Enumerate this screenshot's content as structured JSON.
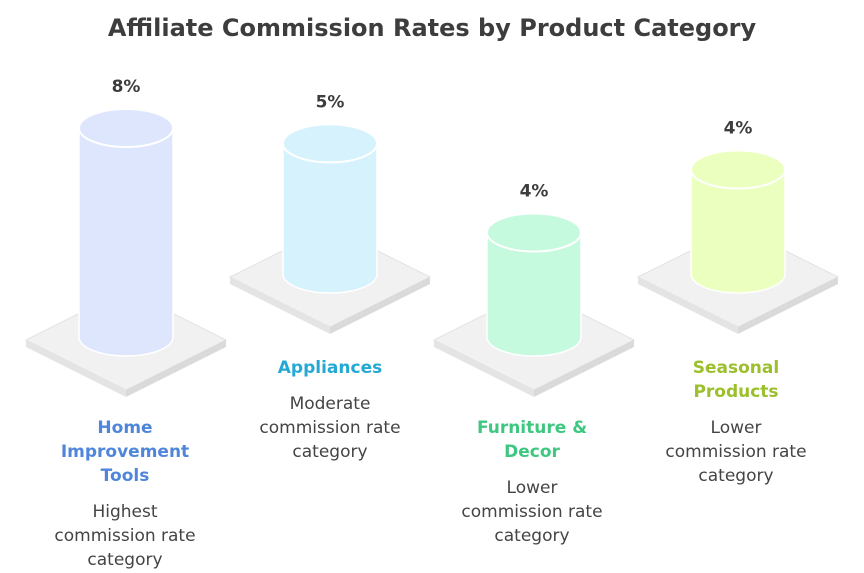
{
  "chart_data": {
    "type": "bar",
    "title": "Affiliate Commission Rates by Product Category",
    "unit": "%",
    "categories": [
      {
        "name": "Home Improvement Tools",
        "value": 8,
        "label": "8%",
        "description": "Highest commission rate category",
        "fill": "#dde6fc",
        "name_color": "#4f86db"
      },
      {
        "name": "Appliances",
        "value": 5,
        "label": "5%",
        "description": "Moderate commission rate category",
        "fill": "#d5f2fd",
        "name_color": "#25a9d4"
      },
      {
        "name": "Furniture & Decor",
        "value": 4,
        "label": "4%",
        "description": "Lower commission rate category",
        "fill": "#c6fadf",
        "name_color": "#3fc781"
      },
      {
        "name": "Seasonal Products",
        "value": 4,
        "label": "4%",
        "description": "Lower commission rate category",
        "fill": "#ebffbe",
        "name_color": "#9cbf2c"
      }
    ]
  }
}
